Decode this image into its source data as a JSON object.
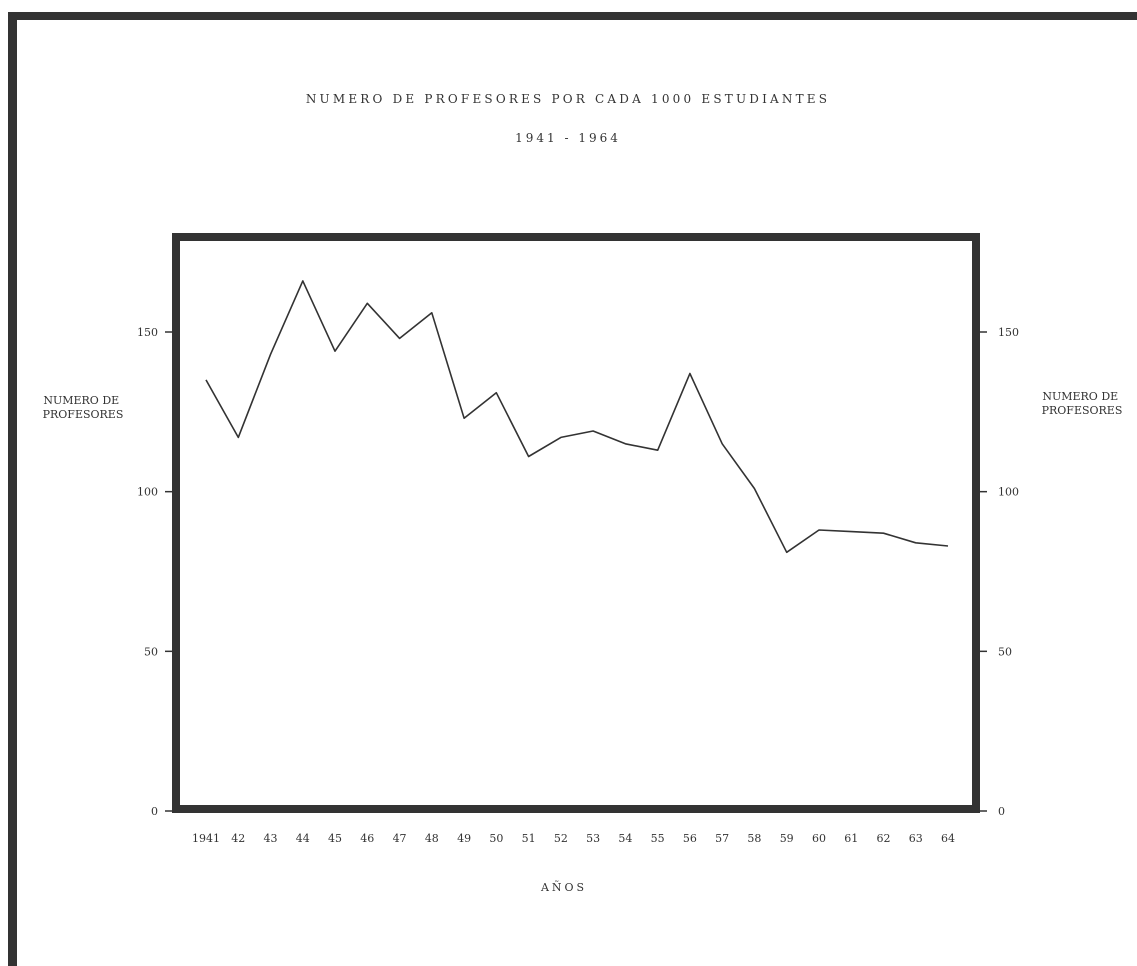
{
  "chart_data": {
    "type": "line",
    "title": "NUMERO DE PROFESORES POR CADA 1000 ESTUDIANTES",
    "subtitle": "1941 - 1964",
    "xlabel": "AÑOS",
    "ylabel": "NUMERO DE PROFESORES",
    "ylabel_right": "NUMERO DE PROFESORES",
    "ylim": [
      0,
      175
    ],
    "y_ticks": [
      0,
      50,
      100,
      150
    ],
    "grid": false,
    "legend": "none",
    "categories": [
      "1941",
      "42",
      "43",
      "44",
      "45",
      "46",
      "47",
      "48",
      "49",
      "50",
      "51",
      "52",
      "53",
      "54",
      "55",
      "56",
      "57",
      "58",
      "59",
      "60",
      "61",
      "62",
      "63",
      "64"
    ],
    "series": [
      {
        "values": [
          135,
          117,
          143,
          166,
          144,
          159,
          148,
          156,
          123,
          131,
          111,
          117,
          119,
          115,
          113,
          137,
          115,
          101,
          81,
          88,
          87.5,
          87,
          84,
          83
        ]
      }
    ],
    "colors": {
      "frame": "#333333",
      "line": "#333333",
      "text": "#333333"
    }
  }
}
